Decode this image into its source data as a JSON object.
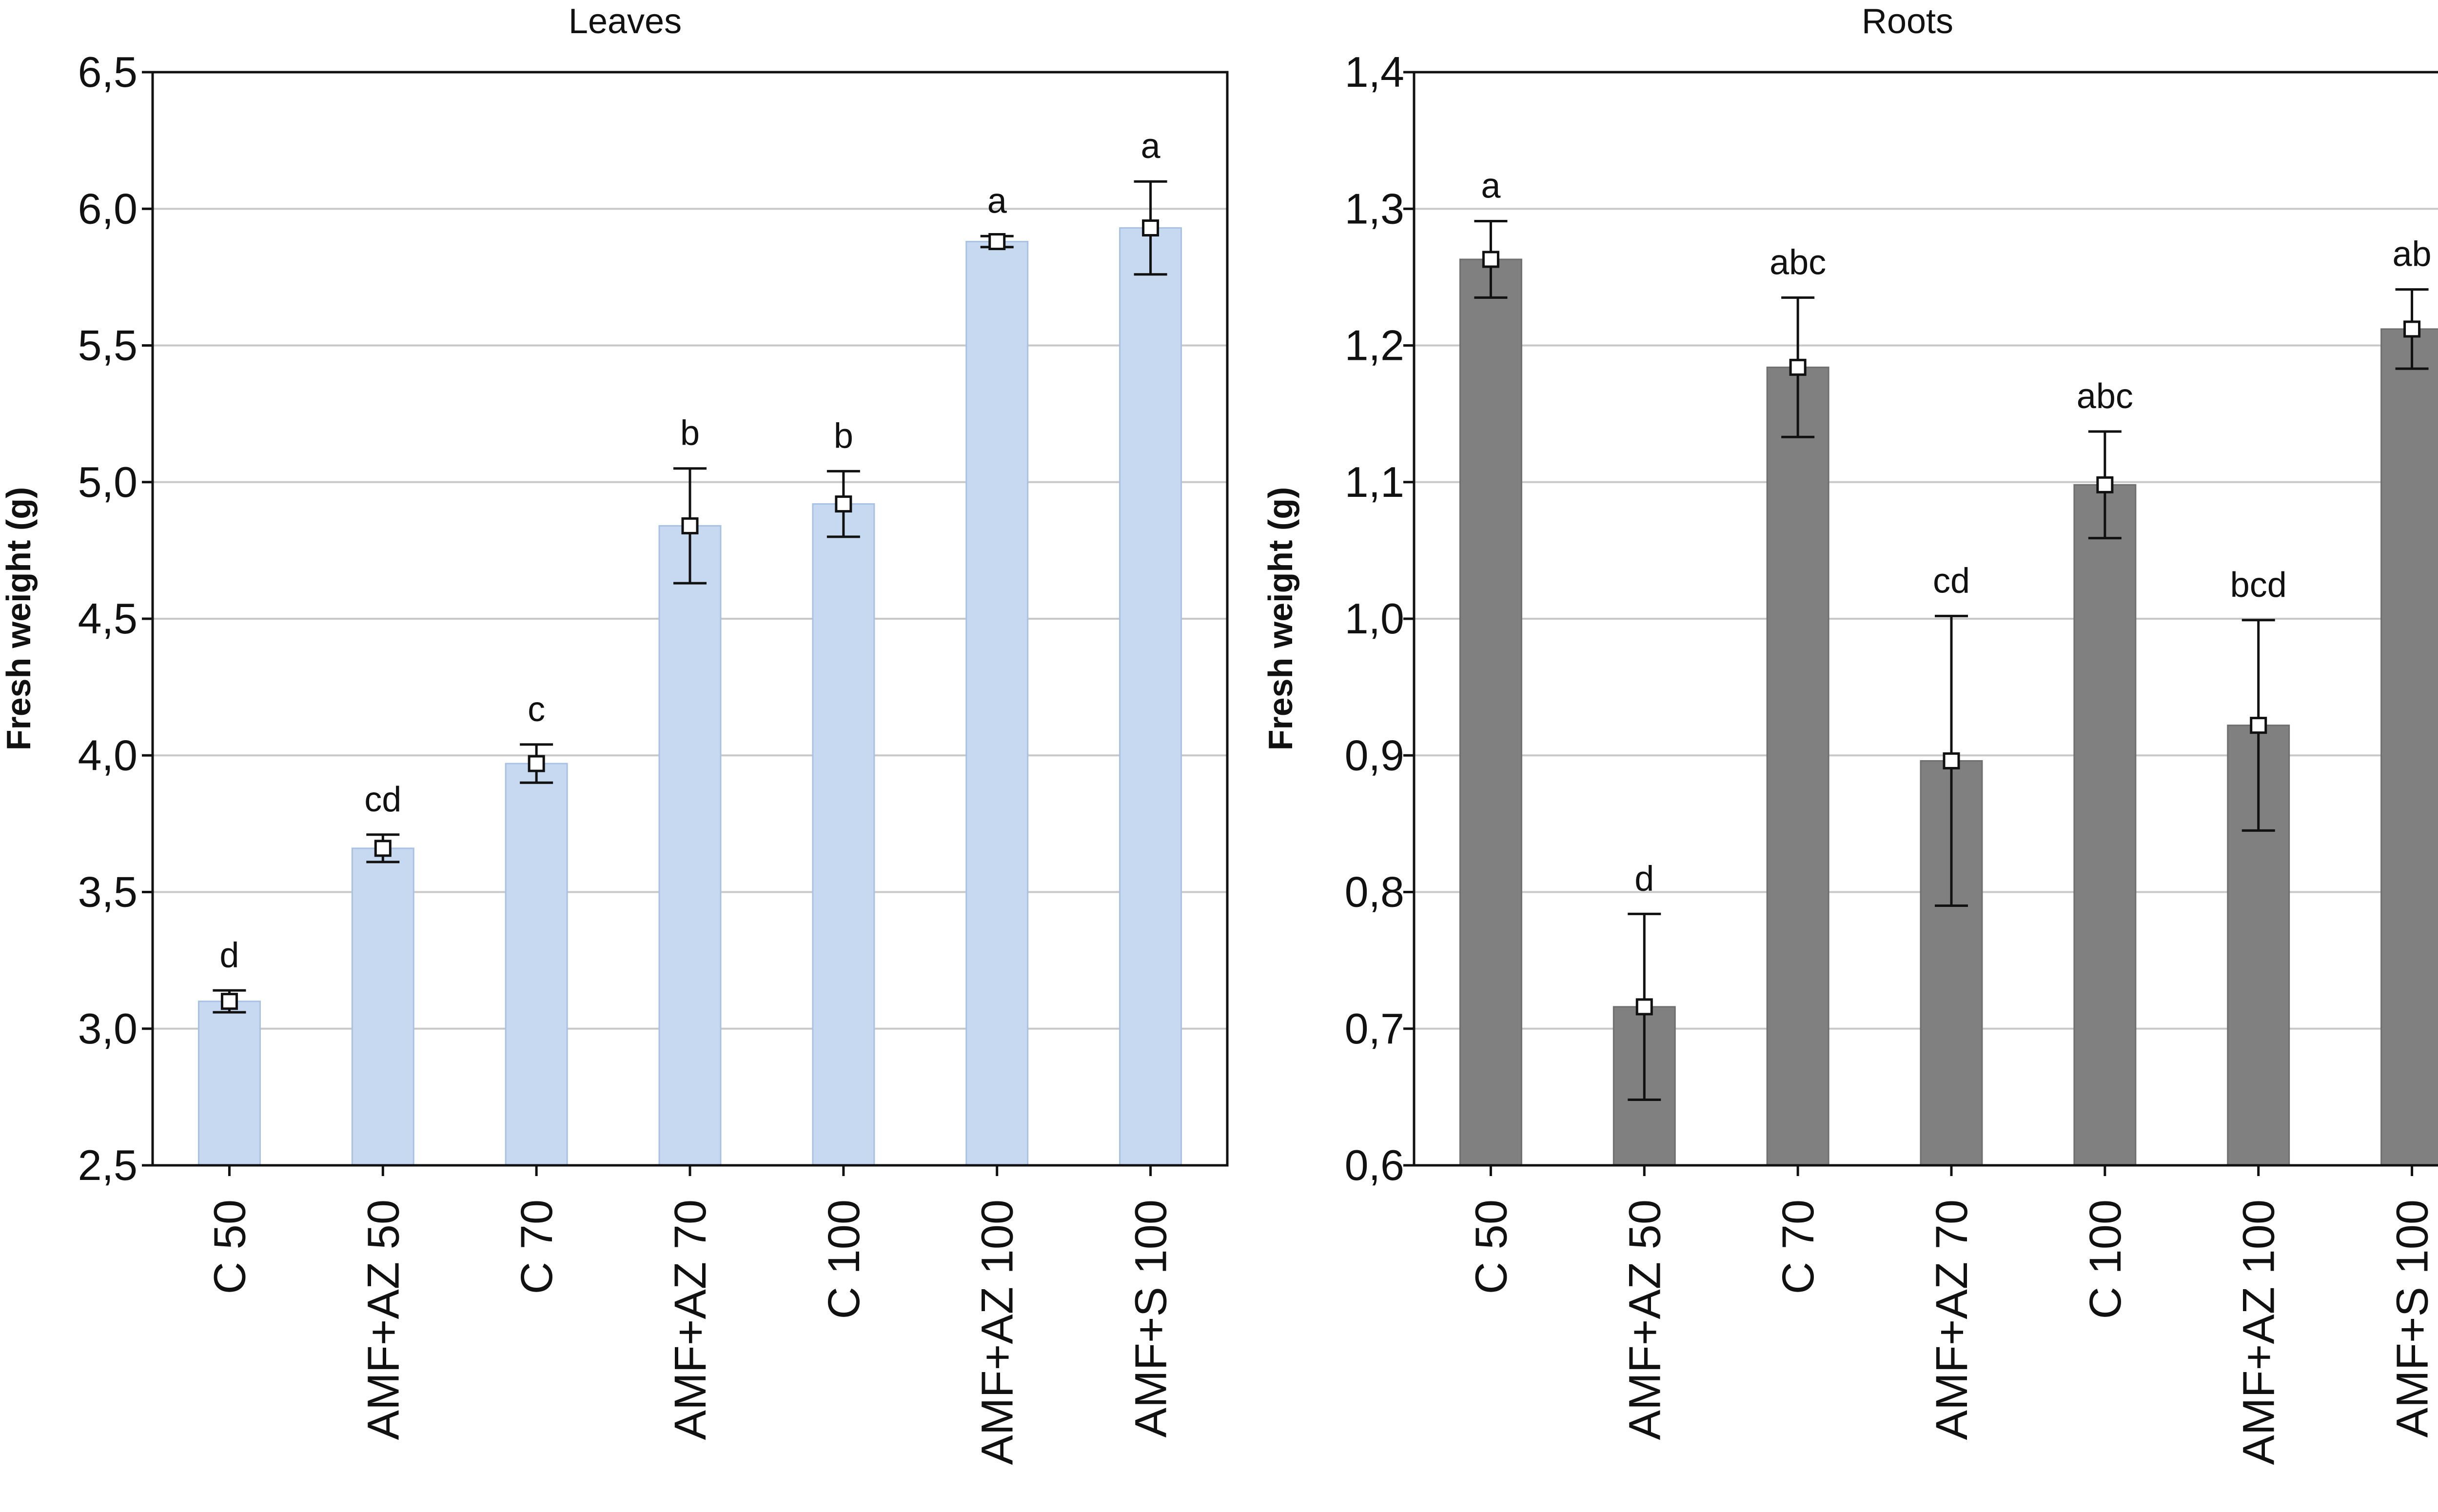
{
  "chart_data": [
    {
      "type": "bar",
      "title": "Leaves",
      "ylabel": "Fresh weight (g)",
      "xlabel": "",
      "categories": [
        "C 50",
        "AMF+AZ 50",
        "C 70",
        "AMF+AZ 70",
        "C 100",
        "AMF+AZ 100",
        "AMF+S 100"
      ],
      "values": [
        3.1,
        3.66,
        3.97,
        4.84,
        4.92,
        5.88,
        5.93
      ],
      "error": [
        0.04,
        0.05,
        0.07,
        0.21,
        0.12,
        0.02,
        0.17
      ],
      "significance": [
        "d",
        "cd",
        "c",
        "b",
        "b",
        "a",
        "a"
      ],
      "ylim": [
        2.5,
        6.5
      ],
      "yticks": [
        2.5,
        3.0,
        3.5,
        4.0,
        4.5,
        5.0,
        5.5,
        6.0,
        6.5
      ],
      "ytick_labels": [
        "2,5",
        "3,0",
        "3,5",
        "4,0",
        "4,5",
        "5,0",
        "5,5",
        "6,0",
        "6,5"
      ],
      "grid": true,
      "bar_color": "#c7d9f1",
      "bar_edge_color": "#a9c1e3"
    },
    {
      "type": "bar",
      "title": "Roots",
      "ylabel": "Fresh weight (g)",
      "xlabel": "",
      "categories": [
        "C 50",
        "AMF+AZ 50",
        "C 70",
        "AMF+AZ 70",
        "C 100",
        "AMF+AZ 100",
        "AMF+S 100"
      ],
      "values": [
        1.263,
        0.716,
        1.184,
        0.896,
        1.098,
        0.922,
        1.212
      ],
      "error": [
        0.028,
        0.068,
        0.051,
        0.106,
        0.039,
        0.077,
        0.029
      ],
      "significance": [
        "a",
        "d",
        "abc",
        "cd",
        "abc",
        "bcd",
        "ab"
      ],
      "ylim": [
        0.6,
        1.4
      ],
      "yticks": [
        0.6,
        0.7,
        0.8,
        0.9,
        1.0,
        1.1,
        1.2,
        1.3,
        1.4
      ],
      "ytick_labels": [
        "0,6",
        "0,7",
        "0,8",
        "0,9",
        "1,0",
        "1,1",
        "1,2",
        "1,3",
        "1,4"
      ],
      "grid": true,
      "bar_color": "#808080",
      "bar_edge_color": "#6f6f6f"
    }
  ]
}
